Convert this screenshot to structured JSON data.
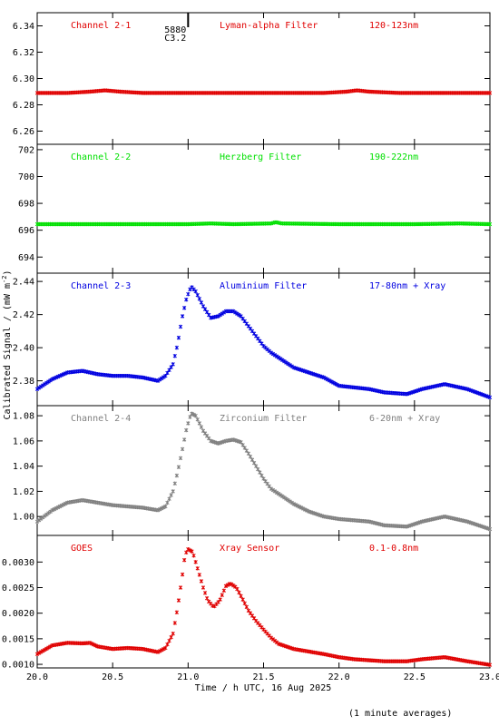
{
  "chart_data": {
    "type": "scatter",
    "xlabel": "Time / h UTC, 16 Aug 2025",
    "ylabel": "Calibrated Signal / (mW m",
    "ylabel_sup": "-2",
    "ylabel_close": ")",
    "xlim": [
      20.0,
      23.0
    ],
    "xticks": [
      "20.0",
      "20.5",
      "21.0",
      "21.5",
      "22.0",
      "22.5",
      "23.0"
    ],
    "footnote": "(1 minute averages)",
    "event_marker": {
      "x": 21.0,
      "label1": "5880",
      "label2": "C3.2"
    },
    "panels": [
      {
        "name": "Channel 2-1",
        "filter": "Lyman-alpha Filter",
        "band": "120-123nm",
        "color": "#e00000",
        "ylim": [
          6.25,
          6.35
        ],
        "yticks": [
          "6.26",
          "6.28",
          "6.30",
          "6.32",
          "6.34"
        ],
        "ytick_values": [
          6.26,
          6.28,
          6.3,
          6.32,
          6.34
        ],
        "points": [
          [
            20.0,
            6.289
          ],
          [
            20.2,
            6.289
          ],
          [
            20.35,
            6.29
          ],
          [
            20.45,
            6.291
          ],
          [
            20.55,
            6.29
          ],
          [
            20.7,
            6.289
          ],
          [
            21.0,
            6.289
          ],
          [
            21.5,
            6.289
          ],
          [
            21.9,
            6.289
          ],
          [
            22.05,
            6.29
          ],
          [
            22.12,
            6.291
          ],
          [
            22.2,
            6.29
          ],
          [
            22.4,
            6.289
          ],
          [
            23.0,
            6.289
          ]
        ]
      },
      {
        "name": "Channel 2-2",
        "filter": "Herzberg Filter",
        "band": "190-222nm",
        "color": "#00e000",
        "ylim": [
          692.8,
          702.4
        ],
        "yticks": [
          "694",
          "696",
          "698",
          "700",
          "702"
        ],
        "ytick_values": [
          694,
          696,
          698,
          700,
          702
        ],
        "points": [
          [
            20.0,
            696.45
          ],
          [
            20.5,
            696.45
          ],
          [
            21.0,
            696.45
          ],
          [
            21.15,
            696.5
          ],
          [
            21.3,
            696.45
          ],
          [
            21.55,
            696.5
          ],
          [
            21.58,
            696.6
          ],
          [
            21.62,
            696.5
          ],
          [
            22.0,
            696.45
          ],
          [
            22.5,
            696.45
          ],
          [
            22.8,
            696.5
          ],
          [
            23.0,
            696.45
          ]
        ]
      },
      {
        "name": "Channel 2-3",
        "filter": "Aluminium Filter",
        "band": "17-80nm + Xray",
        "color": "#0000e0",
        "ylim": [
          2.365,
          2.445
        ],
        "yticks": [
          "2.38",
          "2.40",
          "2.42",
          "2.44"
        ],
        "ytick_values": [
          2.38,
          2.4,
          2.42,
          2.44
        ],
        "points": [
          [
            20.0,
            2.375
          ],
          [
            20.1,
            2.381
          ],
          [
            20.2,
            2.385
          ],
          [
            20.3,
            2.386
          ],
          [
            20.4,
            2.384
          ],
          [
            20.5,
            2.383
          ],
          [
            20.6,
            2.383
          ],
          [
            20.7,
            2.382
          ],
          [
            20.8,
            2.38
          ],
          [
            20.85,
            2.383
          ],
          [
            20.9,
            2.39
          ],
          [
            20.93,
            2.402
          ],
          [
            20.96,
            2.418
          ],
          [
            20.99,
            2.43
          ],
          [
            21.02,
            2.437
          ],
          [
            21.05,
            2.434
          ],
          [
            21.1,
            2.425
          ],
          [
            21.15,
            2.418
          ],
          [
            21.2,
            2.419
          ],
          [
            21.25,
            2.422
          ],
          [
            21.3,
            2.422
          ],
          [
            21.35,
            2.419
          ],
          [
            21.4,
            2.413
          ],
          [
            21.45,
            2.407
          ],
          [
            21.5,
            2.401
          ],
          [
            21.55,
            2.397
          ],
          [
            21.6,
            2.394
          ],
          [
            21.7,
            2.388
          ],
          [
            21.8,
            2.385
          ],
          [
            21.9,
            2.382
          ],
          [
            22.0,
            2.377
          ],
          [
            22.1,
            2.376
          ],
          [
            22.2,
            2.375
          ],
          [
            22.3,
            2.373
          ],
          [
            22.45,
            2.372
          ],
          [
            22.55,
            2.375
          ],
          [
            22.7,
            2.378
          ],
          [
            22.85,
            2.375
          ],
          [
            23.0,
            2.37
          ]
        ]
      },
      {
        "name": "Channel 2-4",
        "filter": "Zirconium Filter",
        "band": "6-20nm + Xray",
        "color": "#808080",
        "ylim": [
          0.985,
          1.088
        ],
        "yticks": [
          "1.00",
          "1.02",
          "1.04",
          "1.06",
          "1.08"
        ],
        "ytick_values": [
          1.0,
          1.02,
          1.04,
          1.06,
          1.08
        ],
        "points": [
          [
            20.0,
            0.996
          ],
          [
            20.1,
            1.005
          ],
          [
            20.2,
            1.011
          ],
          [
            20.3,
            1.013
          ],
          [
            20.4,
            1.011
          ],
          [
            20.5,
            1.009
          ],
          [
            20.6,
            1.008
          ],
          [
            20.7,
            1.007
          ],
          [
            20.8,
            1.005
          ],
          [
            20.85,
            1.008
          ],
          [
            20.9,
            1.02
          ],
          [
            20.93,
            1.035
          ],
          [
            20.96,
            1.052
          ],
          [
            20.99,
            1.07
          ],
          [
            21.02,
            1.082
          ],
          [
            21.05,
            1.08
          ],
          [
            21.1,
            1.068
          ],
          [
            21.15,
            1.06
          ],
          [
            21.2,
            1.058
          ],
          [
            21.25,
            1.06
          ],
          [
            21.3,
            1.061
          ],
          [
            21.35,
            1.059
          ],
          [
            21.4,
            1.05
          ],
          [
            21.45,
            1.04
          ],
          [
            21.5,
            1.03
          ],
          [
            21.55,
            1.022
          ],
          [
            21.6,
            1.018
          ],
          [
            21.7,
            1.01
          ],
          [
            21.8,
            1.004
          ],
          [
            21.9,
            1.0
          ],
          [
            22.0,
            0.998
          ],
          [
            22.1,
            0.997
          ],
          [
            22.2,
            0.996
          ],
          [
            22.3,
            0.993
          ],
          [
            22.45,
            0.992
          ],
          [
            22.55,
            0.996
          ],
          [
            22.7,
            1.0
          ],
          [
            22.85,
            0.996
          ],
          [
            23.0,
            0.99
          ]
        ]
      },
      {
        "name": "GOES",
        "filter": "Xray Sensor",
        "band": "0.1-0.8nm",
        "color": "#e00000",
        "ylim": [
          0.00093,
          0.00352
        ],
        "yticks": [
          "0.0010",
          "0.0015",
          "0.0020",
          "0.0025",
          "0.0030"
        ],
        "ytick_values": [
          0.001,
          0.0015,
          0.002,
          0.0025,
          0.003
        ],
        "points": [
          [
            20.0,
            0.0012
          ],
          [
            20.1,
            0.00137
          ],
          [
            20.2,
            0.00142
          ],
          [
            20.3,
            0.00141
          ],
          [
            20.35,
            0.00142
          ],
          [
            20.4,
            0.00135
          ],
          [
            20.5,
            0.0013
          ],
          [
            20.6,
            0.00132
          ],
          [
            20.7,
            0.0013
          ],
          [
            20.8,
            0.00124
          ],
          [
            20.85,
            0.00132
          ],
          [
            20.9,
            0.0016
          ],
          [
            20.93,
            0.0021
          ],
          [
            20.96,
            0.0027
          ],
          [
            20.98,
            0.00315
          ],
          [
            21.0,
            0.00325
          ],
          [
            21.03,
            0.0032
          ],
          [
            21.06,
            0.0029
          ],
          [
            21.1,
            0.0025
          ],
          [
            21.13,
            0.00225
          ],
          [
            21.17,
            0.00212
          ],
          [
            21.21,
            0.00225
          ],
          [
            21.25,
            0.00253
          ],
          [
            21.28,
            0.00258
          ],
          [
            21.32,
            0.0025
          ],
          [
            21.36,
            0.00228
          ],
          [
            21.4,
            0.00205
          ],
          [
            21.45,
            0.00185
          ],
          [
            21.5,
            0.00168
          ],
          [
            21.55,
            0.00152
          ],
          [
            21.6,
            0.0014
          ],
          [
            21.7,
            0.0013
          ],
          [
            21.8,
            0.00125
          ],
          [
            21.9,
            0.0012
          ],
          [
            22.0,
            0.00114
          ],
          [
            22.1,
            0.0011
          ],
          [
            22.2,
            0.00108
          ],
          [
            22.3,
            0.00106
          ],
          [
            22.45,
            0.00106
          ],
          [
            22.55,
            0.0011
          ],
          [
            22.7,
            0.00114
          ],
          [
            22.85,
            0.00106
          ],
          [
            23.0,
            0.00099
          ]
        ]
      }
    ]
  }
}
